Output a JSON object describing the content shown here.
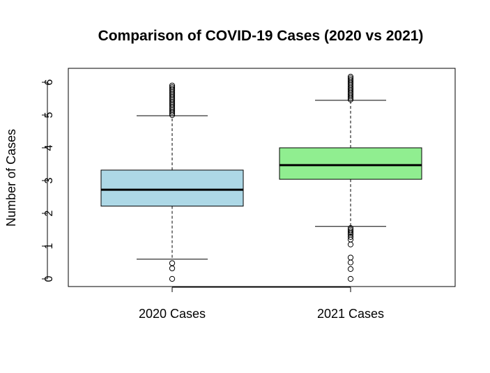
{
  "chart_data": {
    "type": "box",
    "title": "Comparison of COVID-19 Cases (2020 vs 2021)",
    "xlabel": "",
    "ylabel": "Number of Cases",
    "ylim": [
      -0.25,
      6.35
    ],
    "yticks": [
      0,
      1,
      2,
      3,
      4,
      5,
      6
    ],
    "grid": false,
    "categories": [
      "2020 Cases",
      "2021 Cases"
    ],
    "series": [
      {
        "category": "2020 Cases",
        "color": "#ADD8E6",
        "whisker_low": 0.6,
        "q1": 2.22,
        "median": 2.72,
        "q3": 3.32,
        "whisker_high": 4.98,
        "outliers": [
          0.0,
          0.32,
          0.48,
          5.0,
          5.05,
          5.1,
          5.15,
          5.2,
          5.25,
          5.3,
          5.35,
          5.4,
          5.45,
          5.5,
          5.55,
          5.6,
          5.65,
          5.7,
          5.75,
          5.8,
          5.85,
          5.9
        ]
      },
      {
        "category": "2021 Cases",
        "color": "#90EE90",
        "whisker_low": 1.6,
        "q1": 3.04,
        "median": 3.47,
        "q3": 4.0,
        "whisker_high": 5.45,
        "outliers": [
          0.0,
          0.3,
          0.5,
          0.65,
          1.05,
          1.2,
          1.28,
          1.35,
          1.4,
          1.45,
          1.5,
          1.55,
          5.47,
          5.52,
          5.57,
          5.62,
          5.67,
          5.72,
          5.77,
          5.82,
          5.87,
          5.92,
          5.97,
          6.02,
          6.07,
          6.12,
          6.17
        ]
      }
    ]
  }
}
